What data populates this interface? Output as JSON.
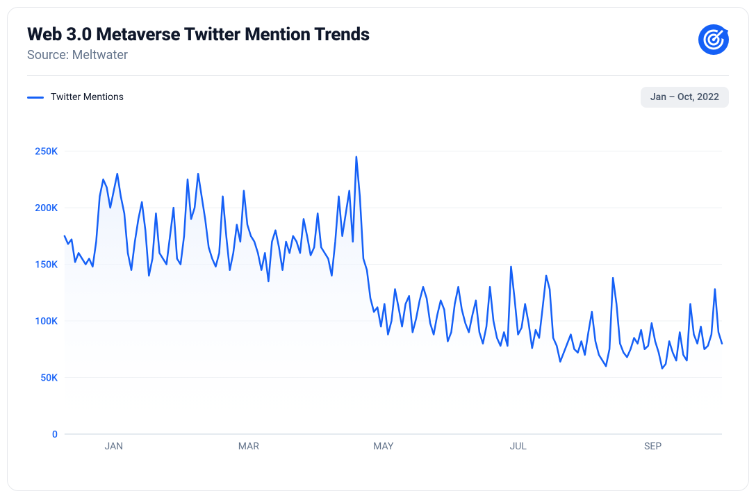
{
  "header": {
    "title": "Web 3.0 Metaverse Twitter Mention Trends",
    "subtitle": "Source: Meltwater"
  },
  "legend": {
    "series_label": "Twitter Mentions",
    "date_range": "Jan – Oct, 2022"
  },
  "chart": {
    "type": "line-area",
    "series_color": "#1560f6",
    "line_width": 2.5,
    "area_fill_top": "#e8f0fe",
    "area_fill_bottom": "#ffffff",
    "grid_color": "#eef0f3",
    "background_color": "#ffffff",
    "y_axis": {
      "min": 0,
      "max": 270000,
      "ticks": [
        0,
        50000,
        100000,
        150000,
        200000,
        250000
      ],
      "tick_labels": [
        "0",
        "50K",
        "100K",
        "150K",
        "200K",
        "250K"
      ],
      "tick_color": "#1560f6",
      "tick_fontsize": 14
    },
    "x_axis": {
      "tick_positions": [
        0.075,
        0.28,
        0.485,
        0.69,
        0.895
      ],
      "tick_labels": [
        "JAN",
        "MAR",
        "MAY",
        "JUL",
        "SEP"
      ],
      "tick_color": "#64748b",
      "tick_fontsize": 14
    },
    "values": [
      175000,
      168000,
      172000,
      152000,
      160000,
      155000,
      150000,
      155000,
      148000,
      170000,
      210000,
      225000,
      218000,
      200000,
      215000,
      230000,
      210000,
      195000,
      160000,
      145000,
      170000,
      190000,
      205000,
      180000,
      140000,
      155000,
      195000,
      160000,
      155000,
      150000,
      175000,
      200000,
      155000,
      150000,
      175000,
      225000,
      190000,
      200000,
      230000,
      210000,
      190000,
      165000,
      155000,
      148000,
      160000,
      210000,
      175000,
      145000,
      160000,
      185000,
      170000,
      215000,
      185000,
      175000,
      170000,
      160000,
      145000,
      160000,
      135000,
      170000,
      180000,
      165000,
      145000,
      170000,
      160000,
      175000,
      170000,
      160000,
      190000,
      175000,
      158000,
      165000,
      195000,
      165000,
      160000,
      155000,
      140000,
      170000,
      210000,
      175000,
      195000,
      215000,
      170000,
      245000,
      210000,
      155000,
      145000,
      120000,
      108000,
      112000,
      95000,
      115000,
      88000,
      100000,
      128000,
      112000,
      95000,
      115000,
      122000,
      90000,
      102000,
      118000,
      130000,
      120000,
      98000,
      88000,
      105000,
      118000,
      110000,
      82000,
      90000,
      115000,
      130000,
      110000,
      98000,
      90000,
      105000,
      118000,
      90000,
      80000,
      95000,
      130000,
      100000,
      85000,
      78000,
      90000,
      78000,
      148000,
      120000,
      88000,
      94000,
      115000,
      98000,
      76000,
      92000,
      85000,
      112000,
      140000,
      128000,
      85000,
      78000,
      64000,
      72000,
      80000,
      88000,
      75000,
      72000,
      82000,
      70000,
      90000,
      108000,
      82000,
      70000,
      65000,
      60000,
      75000,
      138000,
      115000,
      80000,
      72000,
      68000,
      75000,
      85000,
      80000,
      92000,
      75000,
      78000,
      98000,
      82000,
      72000,
      58000,
      62000,
      82000,
      72000,
      65000,
      90000,
      70000,
      65000,
      115000,
      88000,
      80000,
      95000,
      75000,
      78000,
      88000,
      128000,
      90000,
      80000
    ]
  },
  "logo": {
    "color": "#1560f6"
  }
}
